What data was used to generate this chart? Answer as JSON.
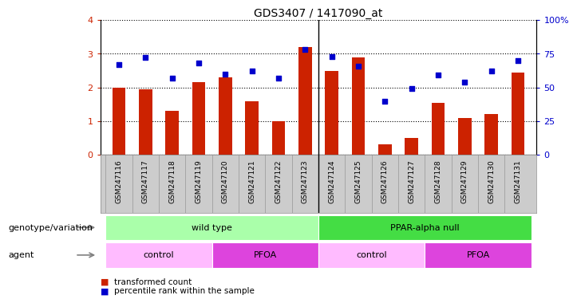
{
  "title": "GDS3407 / 1417090_at",
  "samples": [
    "GSM247116",
    "GSM247117",
    "GSM247118",
    "GSM247119",
    "GSM247120",
    "GSM247121",
    "GSM247122",
    "GSM247123",
    "GSM247124",
    "GSM247125",
    "GSM247126",
    "GSM247127",
    "GSM247128",
    "GSM247129",
    "GSM247130",
    "GSM247131"
  ],
  "bar_values": [
    2.0,
    1.95,
    1.3,
    2.15,
    2.3,
    1.6,
    1.0,
    3.2,
    2.5,
    2.9,
    0.3,
    0.5,
    1.55,
    1.1,
    1.2,
    2.45
  ],
  "dot_values": [
    67,
    72,
    57,
    68,
    60,
    62,
    57,
    78,
    73,
    66,
    40,
    49,
    59,
    54,
    62,
    70
  ],
  "bar_color": "#cc2200",
  "dot_color": "#0000cc",
  "ylim_left": [
    0,
    4
  ],
  "ylim_right": [
    0,
    100
  ],
  "yticks_left": [
    0,
    1,
    2,
    3,
    4
  ],
  "yticks_right": [
    0,
    25,
    50,
    75,
    100
  ],
  "yticklabels_right": [
    "0",
    "25",
    "50",
    "75",
    "100%"
  ],
  "genotype_groups": [
    {
      "label": "wild type",
      "start": 0,
      "end": 8,
      "color": "#aaffaa"
    },
    {
      "label": "PPAR-alpha null",
      "start": 8,
      "end": 16,
      "color": "#44dd44"
    }
  ],
  "agent_groups": [
    {
      "label": "control",
      "start": 0,
      "end": 4,
      "color": "#ffbbff"
    },
    {
      "label": "PFOA",
      "start": 4,
      "end": 8,
      "color": "#dd44dd"
    },
    {
      "label": "control",
      "start": 8,
      "end": 12,
      "color": "#ffbbff"
    },
    {
      "label": "PFOA",
      "start": 12,
      "end": 16,
      "color": "#dd44dd"
    }
  ],
  "legend_items": [
    {
      "label": "transformed count",
      "color": "#cc2200"
    },
    {
      "label": "percentile rank within the sample",
      "color": "#0000cc"
    }
  ],
  "genotype_label": "genotype/variation",
  "agent_label": "agent"
}
